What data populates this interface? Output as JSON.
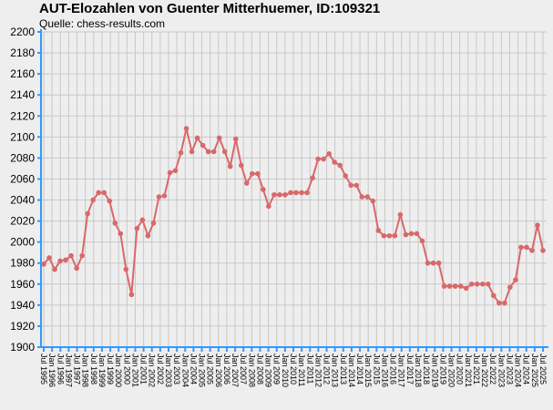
{
  "chart_data": {
    "type": "line",
    "title": "AUT-Elozahlen von Guenter Mitterhuemer, ID:109321",
    "subtitle": "Quelle: chess-results.com",
    "x_labels": [
      "Jul 1995",
      "Jan 1996",
      "Jul 1996",
      "Jan 1997",
      "Jul 1997",
      "Jan 1998",
      "Jul 1998",
      "Jan 1999",
      "Jul 1999",
      "Jan 2000",
      "Jul 2000",
      "Jan 2001",
      "Jul 2001",
      "Jan 2002",
      "Jul 2002",
      "Jan 2003",
      "Jul 2003",
      "Jan 2004",
      "Jul 2004",
      "Jan 2005",
      "Jul 2005",
      "Jan 2006",
      "Jul 2006",
      "Jan 2007",
      "Jul 2007",
      "Jan 2008",
      "Jul 2008",
      "Jan 2009",
      "Jul 2009",
      "Jan 2010",
      "Jul 2010",
      "Jan 2011",
      "Jul 2011",
      "Jan 2012",
      "Jul 2012",
      "Jan 2013",
      "Jul 2013",
      "Jan 2014",
      "Jul 2014",
      "Jan 2015",
      "Jul 2015",
      "Jan 2016",
      "Jul 2016",
      "Jan 2017",
      "Jul 2017",
      "Jan 2018",
      "Jul 2018",
      "Jan 2019",
      "Jul 2019",
      "Jan 2020",
      "Jul 2020",
      "Jan 2021",
      "Jul 2021",
      "Jan 2022",
      "Jul 2022",
      "Jan 2023",
      "Jul 2023",
      "Jan 2024",
      "Jul 2024",
      "Jan 2025",
      "Jul 2025"
    ],
    "series": [
      {
        "color": "#d9686a",
        "values": [
          1979,
          1985,
          1974,
          1982,
          1983,
          1987,
          1975,
          1987,
          2027,
          2040,
          2047,
          2047,
          2039,
          2018,
          2008,
          1974,
          1950,
          2013,
          2021,
          2006,
          2018,
          2043,
          2044,
          2066,
          2068,
          2085,
          2108,
          2086,
          2099,
          2092,
          2086,
          2086,
          2099,
          2086,
          2072,
          2098,
          2073,
          2056,
          2065,
          2065,
          2050,
          2034,
          2045,
          2045,
          2045,
          2047,
          2047,
          2047,
          2047,
          2061,
          2079,
          2079,
          2084,
          2076,
          2073,
          2063,
          2054,
          2054,
          2043,
          2043,
          2039,
          2011,
          2006,
          2006,
          2006,
          2026,
          2007,
          2008,
          2008,
          2001,
          1980,
          1980,
          1980,
          1958,
          1958,
          1958,
          1958,
          1956,
          1960,
          1960,
          1960,
          1960,
          1949,
          1942,
          1942,
          1957,
          1964,
          1995,
          1995,
          1992,
          2016,
          1992
        ]
      }
    ],
    "ylim": [
      1900,
      2200
    ],
    "yticks": [
      1900,
      1920,
      1940,
      1960,
      1980,
      2000,
      2020,
      2040,
      2060,
      2080,
      2100,
      2120,
      2140,
      2160,
      2180,
      2200
    ],
    "grid": true
  }
}
